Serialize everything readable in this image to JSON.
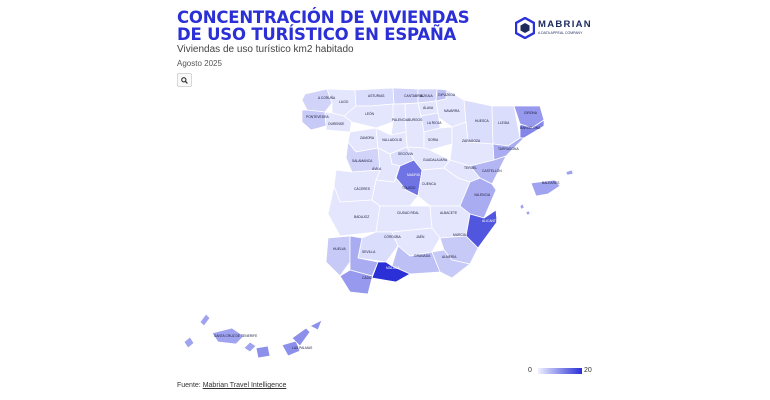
{
  "header": {
    "title": "CONCENTRACIÓN DE VIVIENDAS DE USO TURÍSTICO EN ESPAÑA",
    "subtitle": "Viviendas de uso turístico km2 habitado",
    "date": "Agosto 2025"
  },
  "logo": {
    "name": "MABRIAN",
    "tagline": "A DATA APPEAL COMPANY",
    "accent": "#2a2fd6"
  },
  "toolbar": {
    "search_icon": "search-icon"
  },
  "legend": {
    "min": "0",
    "max": "20",
    "color_low": "#eef0ff",
    "color_high": "#2a2fd6"
  },
  "footer": {
    "source_label": "Fuente:",
    "source_link": "Mabrian Travel Intelligence"
  },
  "map_data": {
    "type": "choropleth",
    "metric": "Viviendas de uso turístico km2 habitado",
    "scale_range": [
      0,
      20
    ],
    "regions": [
      {
        "name": "A CORUÑA",
        "value": 3
      },
      {
        "name": "LUGO",
        "value": 1
      },
      {
        "name": "ASTURIAS",
        "value": 2
      },
      {
        "name": "CANTABRIA",
        "value": 3
      },
      {
        "name": "BIZKAIA",
        "value": 3
      },
      {
        "name": "GIPUZKOA",
        "value": 5
      },
      {
        "name": "ÁLAVA",
        "value": 1
      },
      {
        "name": "NAVARRA",
        "value": 1
      },
      {
        "name": "PONTEVEDRA",
        "value": 4
      },
      {
        "name": "OURENSE",
        "value": 1
      },
      {
        "name": "LEÓN",
        "value": 1
      },
      {
        "name": "PALENCIA",
        "value": 1
      },
      {
        "name": "BURGOS",
        "value": 1
      },
      {
        "name": "LA RIOJA",
        "value": 2
      },
      {
        "name": "HUESCA",
        "value": 2
      },
      {
        "name": "LLEIDA",
        "value": 2
      },
      {
        "name": "GIRONA",
        "value": 9
      },
      {
        "name": "BARCELONA",
        "value": 11
      },
      {
        "name": "ZAMORA",
        "value": 1
      },
      {
        "name": "VALLADOLID",
        "value": 1
      },
      {
        "name": "SORIA",
        "value": 1
      },
      {
        "name": "ZARAGOZA",
        "value": 1
      },
      {
        "name": "TARRAGONA",
        "value": 7
      },
      {
        "name": "SALAMANCA",
        "value": 3
      },
      {
        "name": "SEGOVIA",
        "value": 2
      },
      {
        "name": "ÁVILA",
        "value": 1
      },
      {
        "name": "MADRID",
        "value": 13
      },
      {
        "name": "GUADALAJARA",
        "value": 1
      },
      {
        "name": "TERUEL",
        "value": 1
      },
      {
        "name": "CASTELLÓN",
        "value": 6
      },
      {
        "name": "CÁCERES",
        "value": 1
      },
      {
        "name": "TOLEDO",
        "value": 1
      },
      {
        "name": "CUENCA",
        "value": 1
      },
      {
        "name": "VALENCIA",
        "value": 7
      },
      {
        "name": "BALEARES",
        "value": 8
      },
      {
        "name": "BADAJOZ",
        "value": 1
      },
      {
        "name": "CIUDAD REAL",
        "value": 1
      },
      {
        "name": "ALBACETE",
        "value": 1
      },
      {
        "name": "ALICANTE",
        "value": 16
      },
      {
        "name": "HUELVA",
        "value": 4
      },
      {
        "name": "CÓRDOBA",
        "value": 2
      },
      {
        "name": "JAÉN",
        "value": 1
      },
      {
        "name": "MURCIA",
        "value": 4
      },
      {
        "name": "SEVILLA",
        "value": 7
      },
      {
        "name": "GRANADA",
        "value": 5
      },
      {
        "name": "ALMERÍA",
        "value": 4
      },
      {
        "name": "MÁLAGA",
        "value": 20
      },
      {
        "name": "CÁDIZ",
        "value": 9
      },
      {
        "name": "SANTA CRUZ DE TENERIFE",
        "value": 8
      },
      {
        "name": "LAS PALMAS",
        "value": 10
      }
    ]
  }
}
